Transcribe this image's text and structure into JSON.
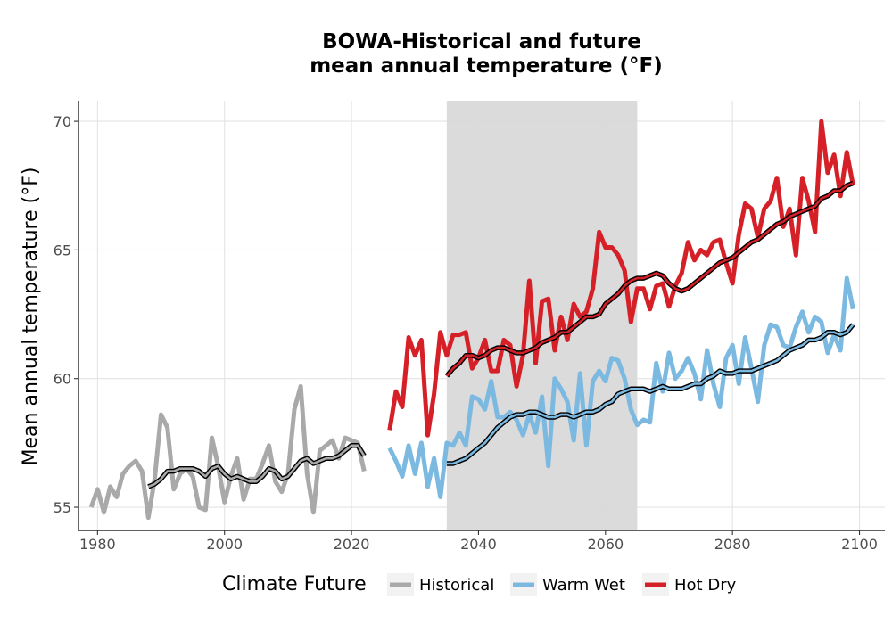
{
  "chart_data": {
    "type": "line",
    "title_line1": "BOWA-Historical and future",
    "title_line2": "mean annual temperature (°F)",
    "xlabel": "",
    "ylabel": "Mean annual temperature (°F)",
    "xlim": [
      1977,
      2104
    ],
    "ylim": [
      54.1,
      70.8
    ],
    "x_ticks": [
      1980,
      2000,
      2020,
      2040,
      2060,
      2080,
      2100
    ],
    "y_ticks": [
      55,
      60,
      65,
      70
    ],
    "shaded_period": [
      2035,
      2065
    ],
    "grid": true,
    "legend_title": "Climate Future",
    "legend_position": "bottom",
    "series": [
      {
        "name": "Historical",
        "color": "#a9a9a9",
        "x": [
          1979,
          1980,
          1981,
          1982,
          1983,
          1984,
          1985,
          1986,
          1987,
          1988,
          1989,
          1990,
          1991,
          1992,
          1993,
          1994,
          1995,
          1996,
          1997,
          1998,
          1999,
          2000,
          2001,
          2002,
          2003,
          2004,
          2005,
          2006,
          2007,
          2008,
          2009,
          2010,
          2011,
          2012,
          2013,
          2014,
          2015,
          2016,
          2017,
          2018,
          2019,
          2020,
          2021,
          2022
        ],
        "y": [
          55.0,
          55.7,
          54.8,
          55.8,
          55.4,
          56.3,
          56.6,
          56.8,
          56.4,
          54.6,
          56.1,
          58.6,
          58.1,
          55.7,
          56.3,
          56.5,
          56.2,
          55.0,
          54.9,
          57.7,
          56.6,
          55.2,
          56.2,
          56.9,
          55.3,
          56.1,
          56.1,
          56.7,
          57.4,
          56.0,
          55.6,
          56.3,
          58.8,
          59.7,
          56.3,
          54.8,
          57.2,
          57.4,
          57.6,
          56.9,
          57.7,
          57.6,
          57.5,
          56.4
        ]
      },
      {
        "name": "Warm Wet",
        "color": "#7cb9e1",
        "x": [
          2026,
          2027,
          2028,
          2029,
          2030,
          2031,
          2032,
          2033,
          2034,
          2035,
          2036,
          2037,
          2038,
          2039,
          2040,
          2041,
          2042,
          2043,
          2044,
          2045,
          2046,
          2047,
          2048,
          2049,
          2050,
          2051,
          2052,
          2053,
          2054,
          2055,
          2056,
          2057,
          2058,
          2059,
          2060,
          2061,
          2062,
          2063,
          2064,
          2065,
          2066,
          2067,
          2068,
          2069,
          2070,
          2071,
          2072,
          2073,
          2074,
          2075,
          2076,
          2077,
          2078,
          2079,
          2080,
          2081,
          2082,
          2083,
          2084,
          2085,
          2086,
          2087,
          2088,
          2089,
          2090,
          2091,
          2092,
          2093,
          2094,
          2095,
          2096,
          2097,
          2098,
          2099
        ],
        "y": [
          57.3,
          56.8,
          56.2,
          57.4,
          56.3,
          57.5,
          55.8,
          56.9,
          55.4,
          57.5,
          57.4,
          57.9,
          57.4,
          59.3,
          59.2,
          58.8,
          59.9,
          58.5,
          58.5,
          58.7,
          58.4,
          57.8,
          58.6,
          57.9,
          59.3,
          56.6,
          60.0,
          59.6,
          59.1,
          57.6,
          60.2,
          57.4,
          59.9,
          60.3,
          59.9,
          60.8,
          60.7,
          60.0,
          58.8,
          58.2,
          58.4,
          58.3,
          60.6,
          59.5,
          61.0,
          60.0,
          60.3,
          60.8,
          60.2,
          59.2,
          61.1,
          59.8,
          58.9,
          60.8,
          61.3,
          59.8,
          61.6,
          60.4,
          59.1,
          61.3,
          62.1,
          62.0,
          61.3,
          61.2,
          62.0,
          62.6,
          61.8,
          62.4,
          62.2,
          61.0,
          61.7,
          61.1,
          63.9,
          62.7
        ]
      },
      {
        "name": "Hot Dry",
        "color": "#d62027",
        "x": [
          2026,
          2027,
          2028,
          2029,
          2030,
          2031,
          2032,
          2033,
          2034,
          2035,
          2036,
          2037,
          2038,
          2039,
          2040,
          2041,
          2042,
          2043,
          2044,
          2045,
          2046,
          2047,
          2048,
          2049,
          2050,
          2051,
          2052,
          2053,
          2054,
          2055,
          2056,
          2057,
          2058,
          2059,
          2060,
          2061,
          2062,
          2063,
          2064,
          2065,
          2066,
          2067,
          2068,
          2069,
          2070,
          2071,
          2072,
          2073,
          2074,
          2075,
          2076,
          2077,
          2078,
          2079,
          2080,
          2081,
          2082,
          2083,
          2084,
          2085,
          2086,
          2087,
          2088,
          2089,
          2090,
          2091,
          2092,
          2093,
          2094,
          2095,
          2096,
          2097,
          2098,
          2099
        ],
        "y": [
          58.0,
          59.5,
          58.9,
          61.6,
          60.9,
          61.5,
          57.8,
          59.4,
          61.8,
          60.9,
          61.7,
          61.7,
          61.8,
          60.4,
          60.8,
          61.5,
          60.3,
          60.3,
          61.5,
          61.3,
          59.7,
          60.9,
          63.8,
          60.6,
          63.0,
          63.1,
          61.1,
          62.4,
          61.5,
          62.9,
          62.4,
          62.6,
          63.5,
          65.7,
          65.1,
          65.1,
          64.8,
          64.2,
          62.2,
          63.5,
          63.5,
          62.7,
          63.6,
          63.7,
          62.8,
          63.6,
          64.1,
          65.3,
          64.6,
          65.0,
          64.8,
          65.3,
          65.4,
          64.5,
          63.7,
          65.6,
          66.8,
          66.6,
          65.5,
          66.6,
          66.9,
          67.8,
          65.9,
          66.6,
          64.8,
          67.8,
          66.9,
          65.7,
          70.0,
          68.0,
          68.7,
          67.1,
          68.8,
          67.5
        ]
      }
    ],
    "smoothed": [
      {
        "series": "Historical",
        "x": [
          1988,
          1989,
          1990,
          1991,
          1992,
          1993,
          1994,
          1995,
          1996,
          1997,
          1998,
          1999,
          2000,
          2001,
          2002,
          2003,
          2004,
          2005,
          2006,
          2007,
          2008,
          2009,
          2010,
          2011,
          2012,
          2013,
          2014,
          2015,
          2016,
          2017,
          2018,
          2019,
          2020,
          2021,
          2022
        ],
        "y": [
          55.8,
          55.9,
          56.1,
          56.4,
          56.4,
          56.5,
          56.5,
          56.5,
          56.4,
          56.2,
          56.5,
          56.6,
          56.3,
          56.1,
          56.2,
          56.1,
          56.0,
          56.0,
          56.2,
          56.5,
          56.4,
          56.1,
          56.2,
          56.5,
          56.8,
          56.9,
          56.7,
          56.8,
          56.9,
          56.9,
          57.0,
          57.2,
          57.4,
          57.4,
          57.0
        ]
      },
      {
        "series": "Warm Wet",
        "x": [
          2035,
          2036,
          2037,
          2038,
          2039,
          2040,
          2041,
          2042,
          2043,
          2044,
          2045,
          2046,
          2047,
          2048,
          2049,
          2050,
          2051,
          2052,
          2053,
          2054,
          2055,
          2056,
          2057,
          2058,
          2059,
          2060,
          2061,
          2062,
          2063,
          2064,
          2065,
          2066,
          2067,
          2068,
          2069,
          2070,
          2071,
          2072,
          2073,
          2074,
          2075,
          2076,
          2077,
          2078,
          2079,
          2080,
          2081,
          2082,
          2083,
          2084,
          2085,
          2086,
          2087,
          2088,
          2089,
          2090,
          2091,
          2092,
          2093,
          2094,
          2095,
          2096,
          2097,
          2098,
          2099
        ],
        "y": [
          56.7,
          56.7,
          56.8,
          56.9,
          57.1,
          57.3,
          57.5,
          57.8,
          58.1,
          58.3,
          58.5,
          58.6,
          58.6,
          58.7,
          58.7,
          58.6,
          58.5,
          58.5,
          58.6,
          58.6,
          58.5,
          58.6,
          58.7,
          58.7,
          58.8,
          59.0,
          59.1,
          59.4,
          59.5,
          59.6,
          59.6,
          59.6,
          59.5,
          59.6,
          59.7,
          59.6,
          59.6,
          59.6,
          59.7,
          59.8,
          59.8,
          60.0,
          60.1,
          60.3,
          60.2,
          60.2,
          60.3,
          60.3,
          60.3,
          60.4,
          60.5,
          60.6,
          60.7,
          60.9,
          61.1,
          61.2,
          61.3,
          61.5,
          61.5,
          61.6,
          61.8,
          61.8,
          61.7,
          61.8,
          62.1
        ]
      },
      {
        "series": "Hot Dry",
        "x": [
          2035,
          2036,
          2037,
          2038,
          2039,
          2040,
          2041,
          2042,
          2043,
          2044,
          2045,
          2046,
          2047,
          2048,
          2049,
          2050,
          2051,
          2052,
          2053,
          2054,
          2055,
          2056,
          2057,
          2058,
          2059,
          2060,
          2061,
          2062,
          2063,
          2064,
          2065,
          2066,
          2067,
          2068,
          2069,
          2070,
          2071,
          2072,
          2073,
          2074,
          2075,
          2076,
          2077,
          2078,
          2079,
          2080,
          2081,
          2082,
          2083,
          2084,
          2085,
          2086,
          2087,
          2088,
          2089,
          2090,
          2091,
          2092,
          2093,
          2094,
          2095,
          2096,
          2097,
          2098,
          2099
        ],
        "y": [
          60.1,
          60.4,
          60.6,
          60.9,
          60.9,
          60.8,
          60.9,
          61.1,
          61.2,
          61.2,
          61.1,
          61.0,
          61.0,
          61.1,
          61.2,
          61.4,
          61.5,
          61.6,
          61.8,
          61.8,
          62.0,
          62.2,
          62.4,
          62.4,
          62.5,
          62.9,
          63.1,
          63.3,
          63.6,
          63.8,
          63.9,
          63.9,
          64.0,
          64.1,
          64.0,
          63.7,
          63.5,
          63.4,
          63.5,
          63.7,
          63.9,
          64.1,
          64.3,
          64.5,
          64.6,
          64.7,
          64.9,
          65.1,
          65.3,
          65.4,
          65.6,
          65.8,
          66.0,
          66.1,
          66.3,
          66.4,
          66.5,
          66.6,
          66.7,
          67.0,
          67.1,
          67.3,
          67.3,
          67.5,
          67.6
        ]
      }
    ],
    "legend": [
      {
        "label": "Historical",
        "color": "#a9a9a9"
      },
      {
        "label": "Warm Wet",
        "color": "#7cb9e1"
      },
      {
        "label": "Hot Dry",
        "color": "#d62027"
      }
    ]
  }
}
